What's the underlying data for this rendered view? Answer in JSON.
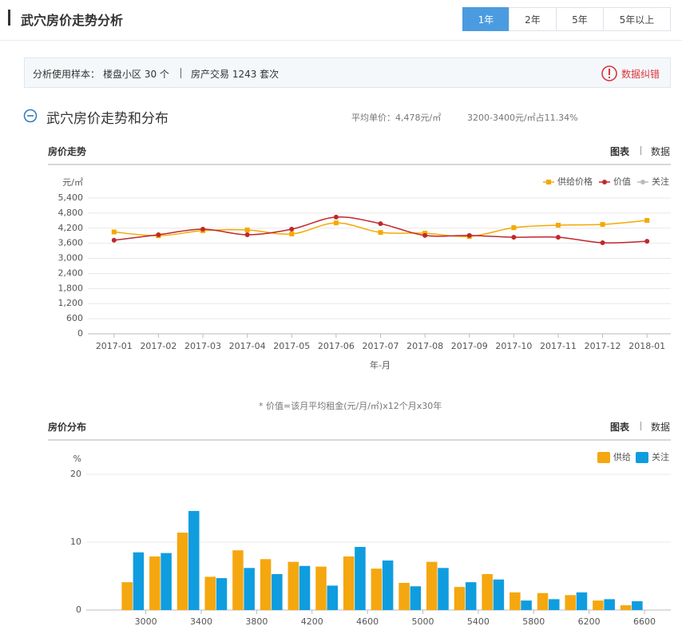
{
  "header": {
    "title": "武穴房价走势分析",
    "tabs": [
      "1年",
      "2年",
      "5年",
      "5年以上"
    ]
  },
  "info": {
    "label": "分析使用样本：",
    "items": [
      "楼盘小区 30 个",
      "房产交易 1243 套次"
    ],
    "correction": "数据纠错"
  },
  "section": {
    "title": "武穴房价走势和分布",
    "average": "平均单价：4,478元/㎡",
    "share": "3200-3400元/㎡占11.34%"
  },
  "view_toggle": [
    "图表",
    "数据"
  ],
  "footnote": "* 价值=该月平均租金(元/月/㎡)x12个月x30年",
  "chart_data": [
    {
      "type": "line",
      "title": "房价走势",
      "y_label": "元/㎡",
      "x_label": "年-月",
      "categories": [
        "2017-01",
        "2017-02",
        "2017-03",
        "2017-04",
        "2017-05",
        "2017-06",
        "2017-07",
        "2017-08",
        "2017-09",
        "2017-10",
        "2017-11",
        "2017-12",
        "2018-01"
      ],
      "series": [
        {
          "name": "供给价格",
          "color": "#f5a800",
          "marker": "square",
          "values": [
            4050,
            3900,
            4100,
            4130,
            3970,
            4410,
            4030,
            4000,
            3870,
            4220,
            4320,
            4350,
            4510
          ]
        },
        {
          "name": "价值",
          "color": "#c0282d",
          "marker": "circle",
          "values": [
            3720,
            3940,
            4160,
            3940,
            4160,
            4640,
            4380,
            3910,
            3910,
            3840,
            3840,
            3620,
            3680
          ]
        },
        {
          "name": "关注",
          "color": "#bbbbbb",
          "marker": "circle",
          "values": [
            null,
            null,
            null,
            null,
            null,
            null,
            null,
            null,
            null,
            null,
            null,
            null,
            null
          ]
        }
      ],
      "ylim": [
        0,
        5400
      ],
      "yticks": [
        0,
        600,
        {
          "value": 1200,
          "label": "1,200"
        },
        {
          "value": 1800,
          "label": "1,800"
        },
        {
          "value": 2400,
          "label": "2,400"
        },
        {
          "value": 3000,
          "label": "3,000"
        },
        {
          "value": 3600,
          "label": "3,600"
        },
        {
          "value": 4200,
          "label": "4,200"
        },
        {
          "value": 4800,
          "label": "4,800"
        },
        {
          "value": 5400,
          "label": "5,400"
        }
      ],
      "grid": true,
      "legend": "upper right"
    },
    {
      "type": "histogram",
      "title": "房价分布",
      "y_label": "%",
      "bins": [
        2800,
        3000,
        3200,
        3400,
        3600,
        3800,
        4000,
        4200,
        4400,
        4600,
        4800,
        5000,
        5200,
        5400,
        5600,
        5800,
        6000,
        6200,
        6400,
        6600
      ],
      "series": [
        {
          "name": "供给",
          "color": "#f5a70f",
          "values": [
            4.1,
            7.9,
            11.4,
            4.9,
            8.8,
            7.5,
            7.1,
            6.4,
            7.9,
            6.1,
            4.0,
            7.1,
            3.4,
            5.3,
            2.6,
            2.5,
            2.2,
            1.4,
            0.7
          ]
        },
        {
          "name": "关注",
          "color": "#0f9de0",
          "values": [
            8.5,
            8.4,
            14.6,
            4.7,
            6.2,
            5.3,
            6.5,
            3.6,
            9.3,
            7.3,
            3.5,
            6.2,
            4.1,
            4.5,
            1.4,
            1.6,
            2.6,
            1.6,
            1.3
          ]
        }
      ],
      "xlim": [
        2570,
        6790
      ],
      "xticks": [
        3000,
        3400,
        3800,
        4200,
        4600,
        5000,
        5400,
        5800,
        6200,
        6600
      ],
      "ylim": [
        0,
        20
      ],
      "yticks": [
        0,
        10,
        20
      ],
      "grid": true,
      "legend": "upper right"
    }
  ]
}
